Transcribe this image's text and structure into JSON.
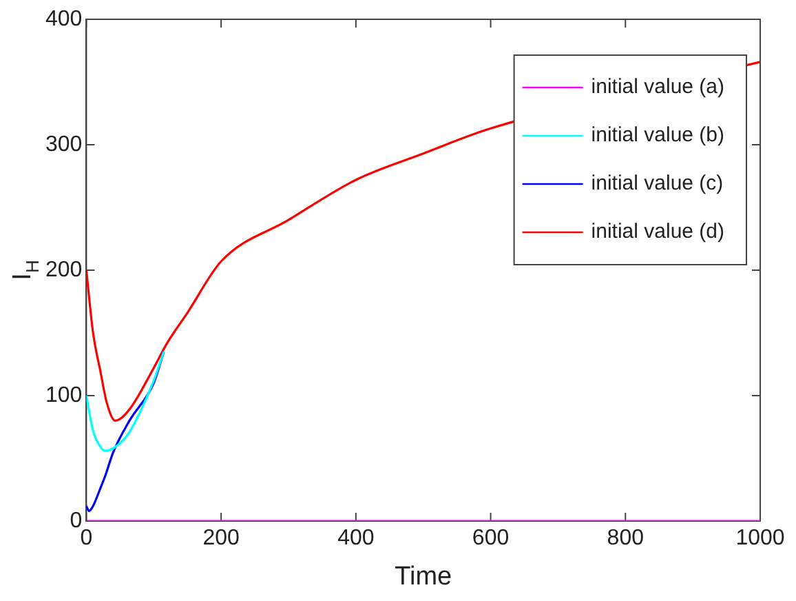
{
  "chart_data": {
    "type": "line",
    "xlabel": "Time",
    "ylabel": "I$_{H}$",
    "xlim": [
      0,
      1000
    ],
    "ylim": [
      0,
      400
    ],
    "xticks": [
      0,
      200,
      400,
      600,
      800,
      1000
    ],
    "yticks": [
      0,
      100,
      200,
      300,
      400
    ],
    "grid": false,
    "legend": "top right",
    "line_style": "solid",
    "marker": "none",
    "series": [
      {
        "name": "initial value (a)",
        "color": "#ff00ff",
        "x": [
          0,
          100,
          200,
          400,
          600,
          800,
          1000
        ],
        "values": [
          0,
          0,
          0,
          0,
          0,
          0,
          0
        ]
      },
      {
        "name": "initial value (b)",
        "color": "#00ffff",
        "x": [
          0,
          10,
          20,
          28,
          40,
          64,
          100,
          115
        ],
        "values": [
          100,
          72,
          60,
          56,
          58,
          71,
          112,
          135
        ]
      },
      {
        "name": "initial value (c)",
        "color": "#0000ff",
        "x": [
          0,
          4,
          10,
          20,
          28,
          40,
          64,
          100,
          115
        ],
        "values": [
          12,
          8,
          12,
          25,
          36,
          55,
          80,
          110,
          135
        ]
      },
      {
        "name": "initial value (d)",
        "color": "#ff0000",
        "x": [
          0,
          10,
          21,
          30,
          43,
          64,
          100,
          120,
          150,
          200,
          300,
          400,
          500,
          600,
          1000
        ],
        "values": [
          200,
          150,
          119,
          95,
          80,
          89,
          122,
          142,
          166,
          207,
          240,
          272,
          293,
          313,
          366
        ]
      }
    ]
  }
}
